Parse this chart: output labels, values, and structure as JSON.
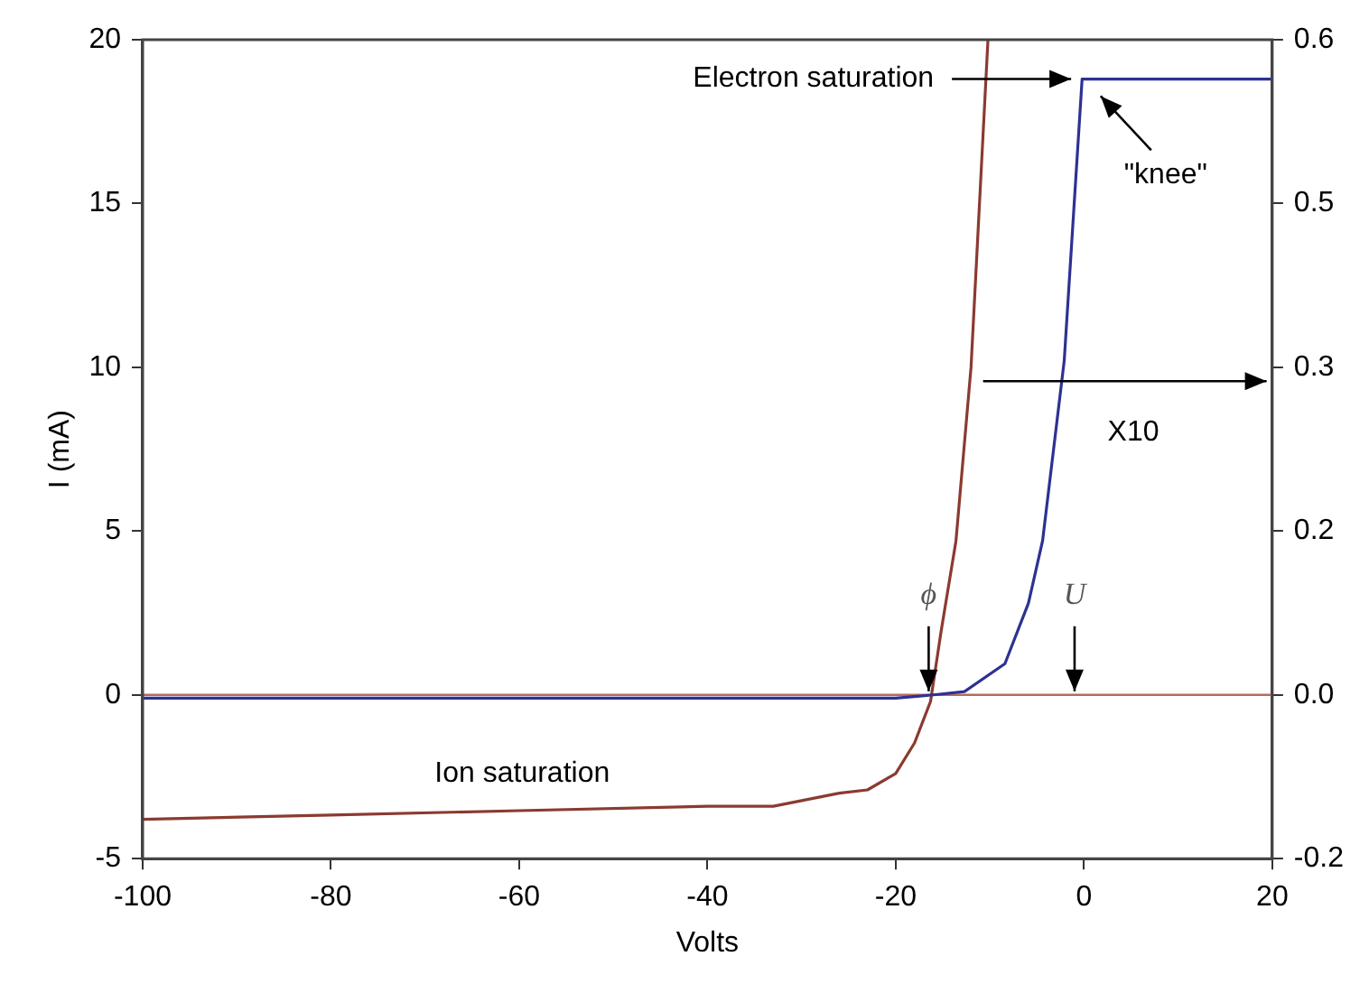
{
  "chart_data": {
    "type": "line",
    "xlabel": "Volts",
    "ylabel": "I (mA)",
    "xlim": [
      -100,
      20
    ],
    "xticks": [
      -100,
      -80,
      -60,
      -40,
      -20,
      0,
      20
    ],
    "ylim": [
      -5,
      20
    ],
    "yticks": [
      -5,
      0,
      5,
      10,
      15,
      20
    ],
    "y2lim": [
      -0.15,
      0.6
    ],
    "y2ticks": [
      {
        "value": -0.15,
        "label": "-0.2"
      },
      {
        "value": 0,
        "label": "0.0"
      },
      {
        "value": 0.15,
        "label": "0.2"
      },
      {
        "value": 0.3,
        "label": "0.3"
      },
      {
        "value": 0.45,
        "label": "0.5"
      },
      {
        "value": 0.6,
        "label": "0.6"
      }
    ],
    "grid": false,
    "legend": false,
    "marker": "none",
    "line_style": "solid",
    "series": [
      {
        "color": "#2e3192",
        "x": [
          -100,
          -60,
          -30,
          -20,
          -16,
          -12.7,
          -8.4,
          -5.9,
          -4.4,
          -2.1,
          -0.2,
          20
        ],
        "values": [
          -0.1,
          -0.1,
          -0.1,
          -0.1,
          0,
          0.1,
          0.95,
          2.8,
          4.7,
          10.2,
          18.8,
          18.8
        ]
      },
      {
        "color": "#8b3a30",
        "axis": "y2",
        "x": [
          -100,
          -80,
          -60,
          -40,
          -33,
          -26,
          -23,
          -20,
          -18,
          -16.3,
          -15.2,
          -13.6,
          -12,
          -10.2
        ],
        "values": [
          -0.114,
          -0.11,
          -0.106,
          -0.102,
          -0.102,
          -0.09,
          -0.087,
          -0.072,
          -0.044,
          -0.006,
          0.057,
          0.141,
          0.3,
          0.6
        ]
      }
    ],
    "ref_lines": [
      {
        "axis": "y",
        "value": 0,
        "color": "#b86a5e"
      }
    ],
    "annotations": [
      {
        "text": "Electron saturation",
        "x": -0.6,
        "y": 18.8
      },
      {
        "text": "\"knee\"",
        "x": 1,
        "y": 18.5
      },
      "X10",
      "Ion saturation",
      {
        "text": "ϕ",
        "x": -16.5,
        "y": 0
      },
      {
        "text": "U",
        "x": -1,
        "y": 0
      }
    ]
  }
}
